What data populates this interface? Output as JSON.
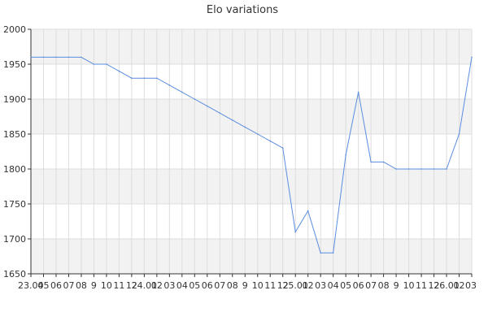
{
  "chart_data": {
    "type": "line",
    "title": "Elo variations",
    "xlabel": "",
    "ylabel": "",
    "ylim": [
      1650,
      2000
    ],
    "yticks": [
      1650,
      1700,
      1750,
      1800,
      1850,
      1900,
      1950,
      2000
    ],
    "grid": true,
    "legend": "none",
    "x_tick_labels": [
      "23.04",
      "05",
      "06",
      "07",
      "08",
      "9",
      "10",
      "11",
      "12",
      "24.01",
      "02",
      "03",
      "04",
      "05",
      "06",
      "07",
      "08",
      "9",
      "10",
      "11",
      "12",
      "25.01",
      "02",
      "03",
      "04",
      "05",
      "06",
      "07",
      "08",
      "9",
      "10",
      "11",
      "12",
      "26.01",
      "02",
      "03"
    ],
    "series": [
      {
        "values": [
          1960,
          1960,
          1960,
          1960,
          1960,
          1950,
          1950,
          1940,
          1930,
          1930,
          1930,
          1920,
          1910,
          1900,
          1890,
          1880,
          1870,
          1860,
          1850,
          1840,
          1830,
          1710,
          1740,
          1680,
          1680,
          1820,
          1910,
          1810,
          1810,
          1800,
          1800,
          1800,
          1800,
          1800,
          1850,
          1960
        ]
      }
    ],
    "colors": {
      "line": "#5b8ddf",
      "band": "#f2f2f2",
      "grid": "#dddddd",
      "axis": "#333333",
      "text": "#333333"
    }
  }
}
